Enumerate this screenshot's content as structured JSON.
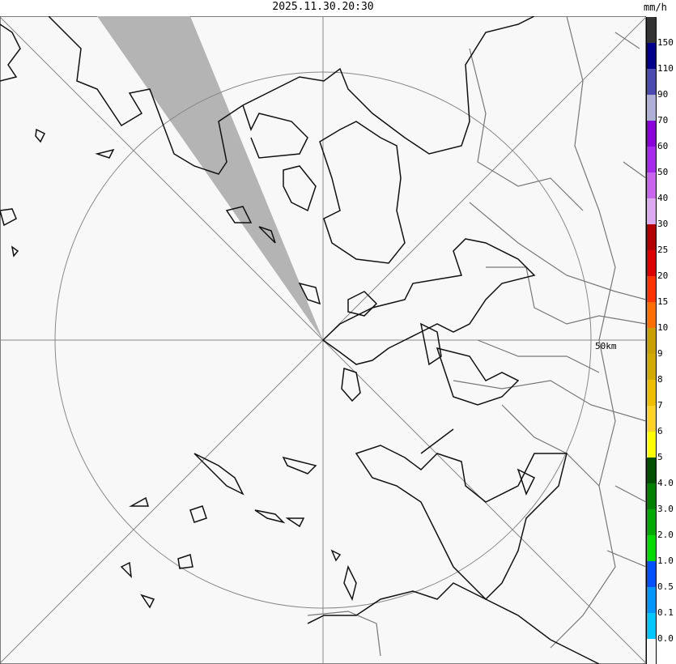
{
  "header": {
    "timestamp": "2025.11.30.20:30",
    "unit": "mm/h"
  },
  "map": {
    "range_label": "50km",
    "background": "#f8f8f8",
    "blocked_sector_color": "#b4b4b4"
  },
  "legend": {
    "colors": [
      "#333333",
      "#00008c",
      "#4a4ab0",
      "#aeb0d8",
      "#8c00dc",
      "#a828f0",
      "#c864f0",
      "#dcaaf0",
      "#b40000",
      "#dc0000",
      "#ff3200",
      "#ff6e00",
      "#c8a000",
      "#d2aa00",
      "#f0be00",
      "#ffd228",
      "#ffff00",
      "#005000",
      "#008200",
      "#00aa00",
      "#00dc00",
      "#0050ff",
      "#0096ff",
      "#00c8ff",
      "#f8f8f8"
    ],
    "labels": [
      "150",
      "110",
      "90",
      "70",
      "60",
      "50",
      "40",
      "30",
      "25",
      "20",
      "15",
      "10",
      "9",
      "8",
      "7",
      "6",
      "5",
      "4.0",
      "3.0",
      "2.0",
      "1.0",
      "0.5",
      "0.1",
      "0.0"
    ]
  }
}
